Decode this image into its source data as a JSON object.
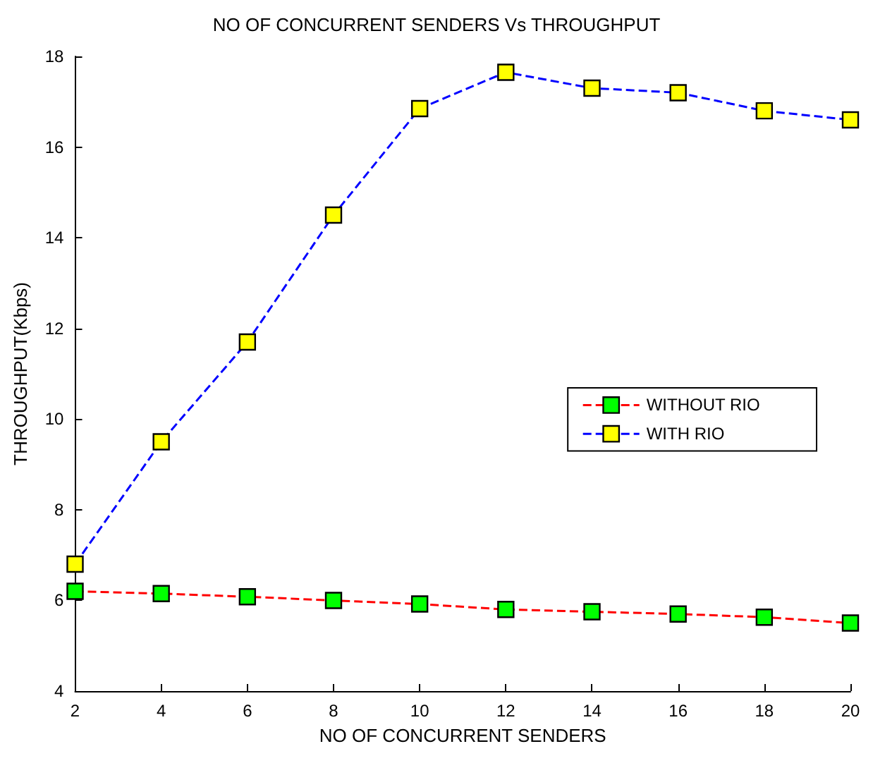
{
  "chart_data": {
    "type": "line",
    "title": "NO OF CONCURRENT SENDERS Vs THROUGHPUT",
    "xlabel": "NO OF CONCURRENT SENDERS",
    "ylabel": "THROUGHPUT(Kbps)",
    "x": [
      2,
      4,
      6,
      8,
      10,
      12,
      14,
      16,
      18,
      20
    ],
    "series": [
      {
        "name": "WITHOUT RIO",
        "color": "#ff0000",
        "colors": [
          "#00ff00",
          "#00ff00",
          "#00ff00",
          "#00ff00",
          "#00ff00",
          "#00ff00",
          "#00ff00",
          "#00ff00",
          "#00ff00",
          "#00ff00"
        ],
        "values": [
          6.2,
          6.15,
          6.08,
          6.0,
          5.92,
          5.8,
          5.75,
          5.7,
          5.63,
          5.5
        ]
      },
      {
        "name": "WITH RIO",
        "color": "#0000ff",
        "colors": [
          "#ffff00",
          "#ffff00",
          "#ffff00",
          "#ffff00",
          "#ffff00",
          "#ffff00",
          "#ffff00",
          "#ffff00",
          "#ffff00",
          "#ffff00"
        ],
        "values": [
          6.8,
          9.5,
          11.7,
          14.5,
          16.85,
          17.65,
          17.3,
          17.2,
          16.8,
          16.6
        ]
      }
    ],
    "xlim": [
      2,
      20
    ],
    "xticks": [
      2,
      4,
      6,
      8,
      10,
      12,
      14,
      16,
      18,
      20
    ],
    "ylim": [
      4,
      18
    ],
    "yticks": [
      4,
      6,
      8,
      10,
      12,
      14,
      16,
      18
    ],
    "grid": false,
    "legend": "right",
    "marker": "square",
    "line_style": "dashed"
  }
}
